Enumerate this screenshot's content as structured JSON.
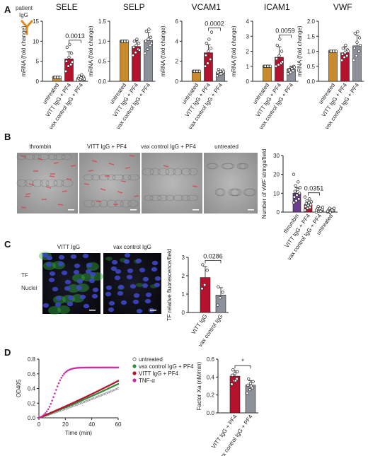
{
  "panels": {
    "A": {
      "label": "A",
      "antibody_label_1": "patient",
      "antibody_label_2": "IgG"
    },
    "B": {
      "label": "B"
    },
    "C": {
      "label": "C",
      "channels": [
        {
          "name": "TF",
          "color": "#2e9d2e"
        },
        {
          "name": "Nuclei",
          "color": "#3b3bb4"
        }
      ]
    },
    "D": {
      "label": "D"
    }
  },
  "images_B": [
    "thrombin",
    "VITT IgG + PF4",
    "vax control IgG + PF4",
    "untreated"
  ],
  "images_C": [
    "VITT IgG",
    "vax control IgG"
  ],
  "colors": {
    "orange": "#c98a2b",
    "red": "#b5122e",
    "gray": "#8d9199",
    "purple": "#6a3d8e",
    "magenta": "#d02aa0",
    "green": "#2f8a3a"
  },
  "chart_data": [
    {
      "id": "A1",
      "type": "bar",
      "title": "SELE",
      "ylabel": "mRNA (fold change)",
      "categories": [
        "untreated",
        "VITT IgG + PF4",
        "vax control IgG + PF4"
      ],
      "values": [
        1.0,
        5.6,
        0.9
      ],
      "errors": [
        0.1,
        1.8,
        0.3
      ],
      "points": [
        [
          1,
          1,
          1,
          1,
          1,
          1,
          1,
          1,
          1
        ],
        [
          2.5,
          3.8,
          4.2,
          5.0,
          6.0,
          7.0,
          8.5,
          9.2,
          4.8
        ],
        [
          0.3,
          0.5,
          0.7,
          0.8,
          0.9,
          1.1,
          1.3,
          1.6,
          0.6
        ]
      ],
      "ylim": [
        0,
        15
      ],
      "yticks": [
        0,
        5,
        10,
        15
      ],
      "sig": {
        "from": 1,
        "to": 2,
        "text": "0.0013"
      }
    },
    {
      "id": "A2",
      "type": "bar",
      "title": "SELP",
      "ylabel": "mRNA (fold change)",
      "categories": [
        "untreated",
        "VITT IgG + PF4",
        "vax control IgG + PF4"
      ],
      "values": [
        1.0,
        0.87,
        1.02
      ],
      "errors": [
        0.02,
        0.14,
        0.2
      ],
      "points": [
        [
          1,
          1,
          1,
          1,
          1,
          1,
          1,
          1,
          1
        ],
        [
          0.65,
          0.72,
          0.8,
          0.85,
          0.9,
          0.95,
          1.0,
          1.05,
          0.78
        ],
        [
          0.7,
          0.8,
          0.9,
          1.0,
          1.05,
          1.1,
          1.25,
          1.3,
          0.95
        ]
      ],
      "ylim": [
        0,
        1.5
      ],
      "yticks": [
        0.0,
        0.5,
        1.0,
        1.5
      ],
      "sig": null
    },
    {
      "id": "A3",
      "type": "bar",
      "title": "VCAM1",
      "ylabel": "mRNA (fold change)",
      "categories": [
        "untreated",
        "VITT IgG + PF4",
        "vax control IgG + PF4"
      ],
      "values": [
        1.0,
        2.85,
        0.9
      ],
      "errors": [
        0.05,
        0.8,
        0.2
      ],
      "points": [
        [
          1,
          1,
          1,
          1,
          1,
          1,
          1,
          1,
          1
        ],
        [
          1.5,
          1.8,
          2.2,
          2.6,
          3.0,
          3.3,
          3.8,
          4.2,
          4.9
        ],
        [
          0.55,
          0.7,
          0.8,
          0.9,
          1.0,
          1.1,
          1.2,
          0.75,
          0.95
        ]
      ],
      "ylim": [
        0,
        6
      ],
      "yticks": [
        0,
        2,
        4,
        6
      ],
      "sig": {
        "from": 1,
        "to": 2,
        "text": "0.0002"
      }
    },
    {
      "id": "A4",
      "type": "bar",
      "title": "ICAM1",
      "ylabel": "mRNA (fold change)",
      "categories": [
        "untreated",
        "VITT IgG + PF4",
        "vax control IgG + PF4"
      ],
      "values": [
        1.0,
        1.6,
        0.8
      ],
      "errors": [
        0.02,
        0.7,
        0.2
      ],
      "points": [
        [
          1,
          1,
          1,
          1,
          1,
          1,
          1,
          1,
          1
        ],
        [
          1.0,
          1.1,
          1.2,
          1.5,
          1.7,
          2.0,
          2.4,
          2.8,
          1.3
        ],
        [
          0.5,
          0.6,
          0.7,
          0.8,
          0.9,
          1.0,
          0.75,
          0.85,
          0.95
        ]
      ],
      "ylim": [
        0,
        4
      ],
      "yticks": [
        0,
        1,
        2,
        3,
        4
      ],
      "sig": {
        "from": 1,
        "to": 2,
        "text": "0.0059"
      }
    },
    {
      "id": "A5",
      "type": "bar",
      "title": "VWF",
      "ylabel": "mRNA (fold change)",
      "categories": [
        "untreated",
        "VITT IgG + PF4",
        "vax control IgG + PF4"
      ],
      "values": [
        1.0,
        0.95,
        1.18
      ],
      "errors": [
        0.03,
        0.2,
        0.35
      ],
      "points": [
        [
          1,
          1,
          1,
          1,
          1,
          1,
          1,
          1,
          1
        ],
        [
          0.7,
          0.8,
          0.85,
          0.9,
          0.95,
          1.05,
          1.1,
          1.2,
          1.0
        ],
        [
          0.7,
          0.85,
          1.0,
          1.1,
          1.3,
          1.45,
          1.6,
          1.65,
          1.2
        ]
      ],
      "ylim": [
        0,
        2.0
      ],
      "yticks": [
        0.0,
        0.5,
        1.0,
        1.5,
        2.0
      ],
      "sig": null
    },
    {
      "id": "B1",
      "type": "bar",
      "title": "",
      "ylabel": "Number of vWF strings/field",
      "categories": [
        "thrombin",
        "VITT IgG + PF4",
        "vax control IgG + PF4",
        "untreated"
      ],
      "values": [
        10.0,
        4.0,
        1.5,
        1.0
      ],
      "errors": [
        3.0,
        1.5,
        0.8,
        0.6
      ],
      "points": [
        [
          5,
          6,
          7,
          8,
          9,
          10,
          11,
          12,
          13,
          14,
          16,
          20
        ],
        [
          1,
          2,
          2.5,
          3,
          3.5,
          4,
          4.5,
          5,
          5.5,
          6,
          7,
          8
        ],
        [
          0,
          0.5,
          1,
          1,
          1.5,
          1.5,
          2,
          2,
          2.5,
          3,
          0.5,
          1
        ],
        [
          0,
          0,
          0.5,
          0.5,
          1,
          1,
          1.5,
          1.5,
          2,
          2,
          1,
          0.5
        ]
      ],
      "ylim": [
        0,
        30
      ],
      "yticks": [
        0,
        10,
        20,
        30
      ],
      "sig": {
        "from": 1,
        "to": 2,
        "text": "0.0351"
      }
    },
    {
      "id": "C1",
      "type": "bar",
      "title": "",
      "ylabel": "TF relative fluorescence/field",
      "categories": [
        "VITT IgG",
        "vax control IgG"
      ],
      "values": [
        1.9,
        0.95
      ],
      "errors": [
        0.6,
        0.4
      ],
      "points": [
        [
          1.3,
          1.5,
          2.3,
          2.6
        ],
        [
          0.4,
          0.8,
          1.1,
          1.4
        ]
      ],
      "ylim": [
        0,
        3
      ],
      "yticks": [
        0,
        1,
        2,
        3
      ],
      "sig": {
        "from": 0,
        "to": 1,
        "text": "0.0286"
      }
    },
    {
      "id": "D1",
      "type": "line",
      "title": "",
      "xlabel": "Time (min)",
      "ylabel": "OD405",
      "xlim": [
        0,
        60
      ],
      "xticks": [
        0,
        20,
        40,
        60
      ],
      "ylim": [
        0,
        0.8
      ],
      "yticks": [
        0.0,
        0.2,
        0.4,
        0.6,
        0.8
      ],
      "series": [
        {
          "name": "untreated",
          "color": "#555555",
          "marker": "open",
          "kind": "linear",
          "rate": 0.0058
        },
        {
          "name": "vax control IgG + PF4",
          "color": "#2f8a3a",
          "marker": "filled",
          "kind": "linear",
          "rate": 0.0068
        },
        {
          "name": "VITT IgG + PF4",
          "color": "#b5122e",
          "marker": "filled",
          "kind": "linear",
          "rate": 0.0075
        },
        {
          "name": "TNF-α",
          "color": "#d02aa0",
          "marker": "filled",
          "kind": "sigmoid",
          "max": 0.71,
          "mid": 12,
          "k": 0.28
        }
      ]
    },
    {
      "id": "D2",
      "type": "bar",
      "title": "",
      "ylabel": "Factor Xa (nM/min)",
      "categories": [
        "VITT IgG + PF4",
        "vax control IgG + PF4"
      ],
      "values": [
        0.41,
        0.31
      ],
      "errors": [
        0.06,
        0.05
      ],
      "points": [
        [
          0.32,
          0.36,
          0.38,
          0.42,
          0.44,
          0.46,
          0.48,
          0.36
        ],
        [
          0.22,
          0.26,
          0.28,
          0.31,
          0.33,
          0.35,
          0.38,
          0.3
        ]
      ],
      "ylim": [
        0,
        0.6
      ],
      "yticks": [
        0.0,
        0.2,
        0.4,
        0.6
      ],
      "sig": {
        "from": 0,
        "to": 1,
        "text": "*"
      }
    }
  ]
}
